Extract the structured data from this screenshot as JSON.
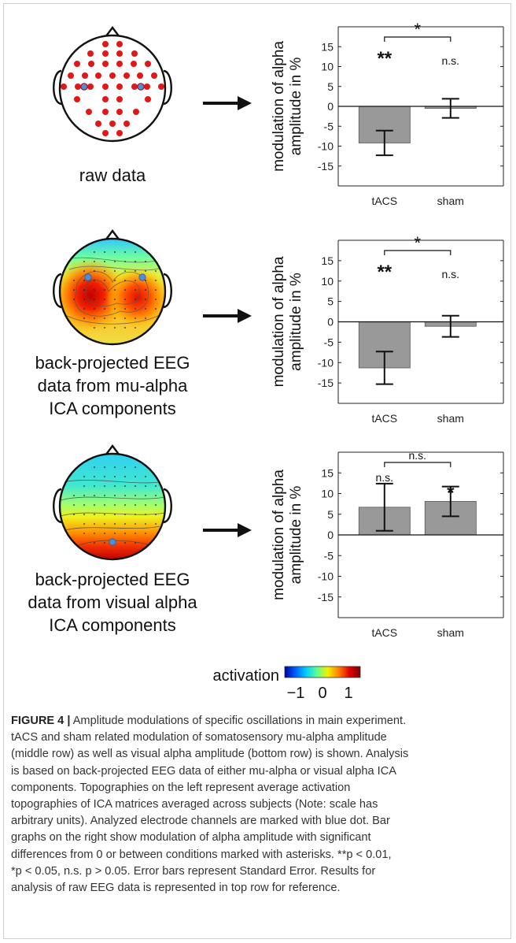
{
  "rows": [
    {
      "label_lines": [
        "raw data"
      ],
      "topo_type": "electrodes",
      "chart_data": {
        "type": "bar",
        "categories": [
          "tACS",
          "sham"
        ],
        "values": [
          -9.2,
          -0.5
        ],
        "errors": [
          3.1,
          2.4
        ],
        "ylim": [
          -20,
          20
        ],
        "yticks": [
          -15,
          -10,
          -5,
          0,
          5,
          10,
          15
        ],
        "ylabel_lines": [
          "modulation of alpha",
          "amplitude in %"
        ],
        "bar_annotations": [
          "**",
          "n.s."
        ],
        "bracket_annotation": "*",
        "bar_color": "#999999"
      }
    },
    {
      "label_lines": [
        "back-projected EEG",
        "data from mu-alpha",
        "ICA components"
      ],
      "topo_type": "mu",
      "chart_data": {
        "type": "bar",
        "categories": [
          "tACS",
          "sham"
        ],
        "values": [
          -11.3,
          -1.1
        ],
        "errors": [
          4.0,
          2.6
        ],
        "ylim": [
          -20,
          20
        ],
        "yticks": [
          -15,
          -10,
          -5,
          0,
          5,
          10,
          15
        ],
        "ylabel_lines": [
          "modulation of alpha",
          "amplitude in %"
        ],
        "bar_annotations": [
          "**",
          "n.s."
        ],
        "bracket_annotation": "*",
        "bar_color": "#999999"
      }
    },
    {
      "label_lines": [
        "back-projected EEG",
        "data from visual alpha",
        "ICA components"
      ],
      "topo_type": "visual",
      "chart_data": {
        "type": "bar",
        "categories": [
          "tACS",
          "sham"
        ],
        "values": [
          6.7,
          8.1
        ],
        "errors": [
          5.7,
          3.6
        ],
        "ylim": [
          -20,
          20
        ],
        "yticks": [
          -15,
          -10,
          -5,
          0,
          5,
          10,
          15
        ],
        "ylabel_lines": [
          "modulation of alpha",
          "amplitude in %"
        ],
        "bar_annotations": [
          "n.s.",
          "*"
        ],
        "bracket_annotation": "n.s.",
        "bar_color": "#999999"
      }
    }
  ],
  "colorbar": {
    "label": "activation",
    "ticks": [
      "−1",
      "0",
      "1"
    ],
    "colors": [
      "#0000a0",
      "#0060ff",
      "#00d0ff",
      "#60ff90",
      "#f0f000",
      "#ff8000",
      "#e00000",
      "#800000"
    ]
  },
  "caption": {
    "figure_label": "FIGURE 4 |",
    "lines": [
      " Amplitude modulations of specific oscillations in main experiment.",
      "tACS and sham related modulation of somatosensory mu-alpha amplitude",
      "(middle row) as well as visual alpha amplitude (bottom row) is shown. Analysis",
      "is based on back-projected EEG data of either mu-alpha or visual alpha ICA",
      "components. Topographies on the left represent average activation",
      "topographies of ICA matrices averaged across subjects (Note: scale has",
      "arbitrary units). Analyzed electrode channels are marked with blue dot. Bar",
      "graphs on the right show modulation of alpha amplitude with significant",
      "differences from 0 or between conditions marked with asterisks. **p < 0.01,",
      "*p < 0.05, n.s. p > 0.05. Error bars represent Standard Error. Results for",
      "analysis of raw EEG data is represented in top row for reference."
    ]
  }
}
